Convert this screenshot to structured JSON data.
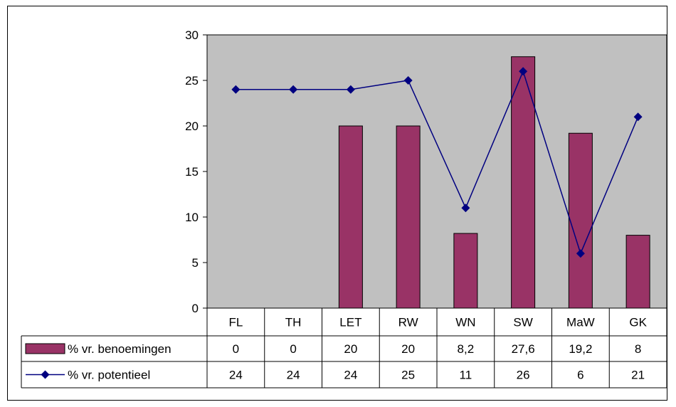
{
  "chart_data": {
    "type": "bar",
    "categories": [
      "FL",
      "TH",
      "LET",
      "RW",
      "WN",
      "SW",
      "MaW",
      "GK"
    ],
    "series": [
      {
        "name": "% vr. benoemingen",
        "type": "bar",
        "color": "#993366",
        "values": [
          0,
          0,
          20,
          20,
          8.2,
          27.6,
          19.2,
          8
        ],
        "labels": [
          "0",
          "0",
          "20",
          "20",
          "8,2",
          "27,6",
          "19,2",
          "8"
        ]
      },
      {
        "name": "% vr. potentieel",
        "type": "line",
        "color": "#000080",
        "values": [
          24,
          24,
          24,
          25,
          11,
          26,
          6,
          21
        ],
        "labels": [
          "24",
          "24",
          "24",
          "25",
          "11",
          "26",
          "6",
          "21"
        ]
      }
    ],
    "yticks": [
      "0",
      "5",
      "10",
      "15",
      "20",
      "25",
      "30"
    ],
    "ylim": [
      0,
      30
    ],
    "plot_background": "#c0c0c0",
    "grid": false,
    "legend": "data-table"
  }
}
